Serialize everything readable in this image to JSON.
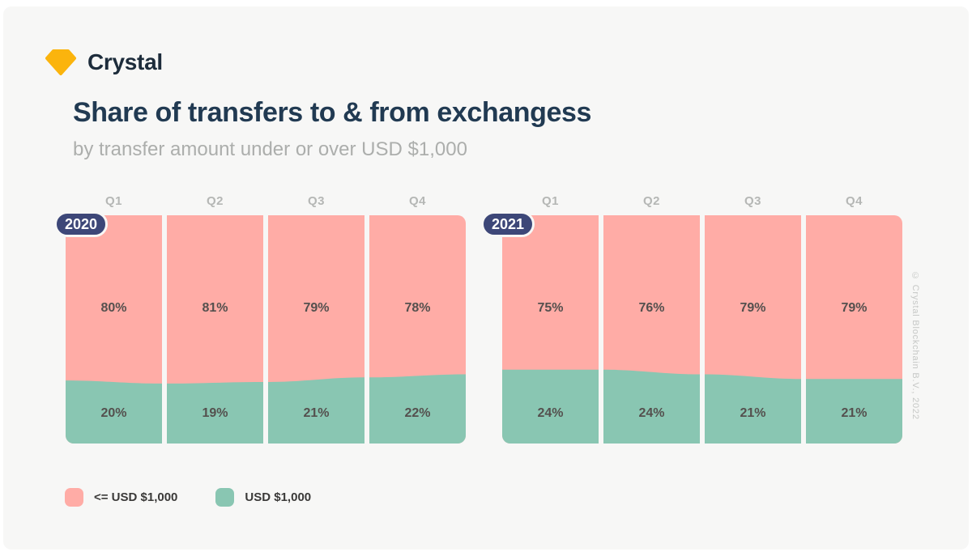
{
  "logo": {
    "text": "Crystal",
    "gem_color": "#FBB40D"
  },
  "header": {
    "title": "Share of transfers to & from exchangess",
    "subtitle": "by transfer amount under or over USD $1,000"
  },
  "colors": {
    "under": "#FFACA6",
    "over": "#89C6B2",
    "badge": "#3D4778",
    "background": "#F7F7F6",
    "title": "#213A52"
  },
  "chart_data": {
    "type": "bar",
    "subtype": "stacked-100pct-grouped",
    "title": "Share of transfers to & from exchangess",
    "subtitle": "by transfer amount under or over USD $1,000",
    "legend_position": "bottom-left",
    "groups": [
      {
        "year": "2020",
        "categories": [
          "Q1",
          "Q2",
          "Q3",
          "Q4"
        ],
        "series": [
          {
            "name": "<= USD $1,000",
            "color": "#FFACA6",
            "values": [
              80,
              81,
              79,
              78
            ]
          },
          {
            "name": "USD $1,000",
            "color": "#89C6B2",
            "values": [
              20,
              19,
              21,
              22
            ]
          }
        ]
      },
      {
        "year": "2021",
        "categories": [
          "Q1",
          "Q2",
          "Q3",
          "Q4"
        ],
        "series": [
          {
            "name": "<= USD $1,000",
            "color": "#FFACA6",
            "values": [
              75,
              76,
              79,
              79
            ]
          },
          {
            "name": "USD $1,000",
            "color": "#89C6B2",
            "values": [
              24,
              24,
              21,
              21
            ]
          }
        ]
      }
    ]
  },
  "legend": [
    {
      "label": "<= USD $1,000",
      "color": "#FFACA6"
    },
    {
      "label": "USD $1,000",
      "color": "#89C6B2"
    }
  ],
  "footer": {
    "copyright": "© Crystal Blockchain B.V., 2022"
  }
}
